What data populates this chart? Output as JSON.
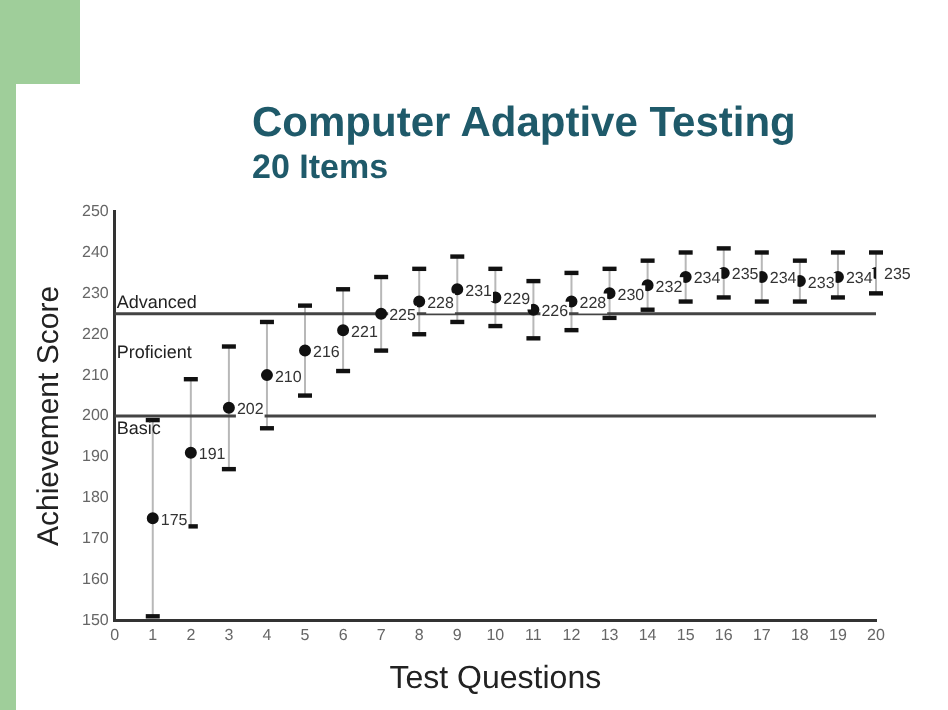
{
  "chart_data": {
    "type": "scatter",
    "title": "Computer Adaptive Testing",
    "subtitle": "20 Items",
    "xlabel": "Test Questions",
    "ylabel": "Achievement Score",
    "x": [
      1,
      2,
      3,
      4,
      5,
      6,
      7,
      8,
      9,
      10,
      11,
      12,
      13,
      14,
      15,
      16,
      17,
      18,
      19,
      20
    ],
    "series": [
      {
        "color": "#111111",
        "values": [
          175,
          191,
          202,
          210,
          216,
          221,
          225,
          228,
          231,
          229,
          226,
          228,
          230,
          232,
          234,
          235,
          234,
          233,
          234,
          235
        ],
        "errors": [
          [
            151,
            199
          ],
          [
            173,
            209
          ],
          [
            187,
            217
          ],
          [
            197,
            223
          ],
          [
            205,
            227
          ],
          [
            211,
            231
          ],
          [
            216,
            234
          ],
          [
            220,
            236
          ],
          [
            223,
            239
          ],
          [
            222,
            236
          ],
          [
            219,
            233
          ],
          [
            221,
            235
          ],
          [
            224,
            236
          ],
          [
            226,
            238
          ],
          [
            228,
            240
          ],
          [
            229,
            241
          ],
          [
            228,
            240
          ],
          [
            228,
            238
          ],
          [
            229,
            240
          ],
          [
            230,
            240
          ]
        ]
      }
    ],
    "data_labels": true,
    "marker": "circle",
    "xlim": [
      0,
      20
    ],
    "xticks": [
      0,
      1,
      2,
      3,
      4,
      5,
      6,
      7,
      8,
      9,
      10,
      11,
      12,
      13,
      14,
      15,
      16,
      17,
      18,
      19,
      20
    ],
    "ylim": [
      150,
      250
    ],
    "yticks": [
      150,
      160,
      170,
      180,
      190,
      200,
      210,
      220,
      230,
      240,
      250
    ],
    "grid": false,
    "legend": false,
    "ref_lines": [
      {
        "axis": "y",
        "value": 225,
        "label": "Advanced",
        "color": "#444444"
      },
      {
        "axis": "y",
        "value": 200,
        "label": "Basic",
        "color": "#444444"
      }
    ],
    "annotations": [
      "Proficient"
    ]
  }
}
